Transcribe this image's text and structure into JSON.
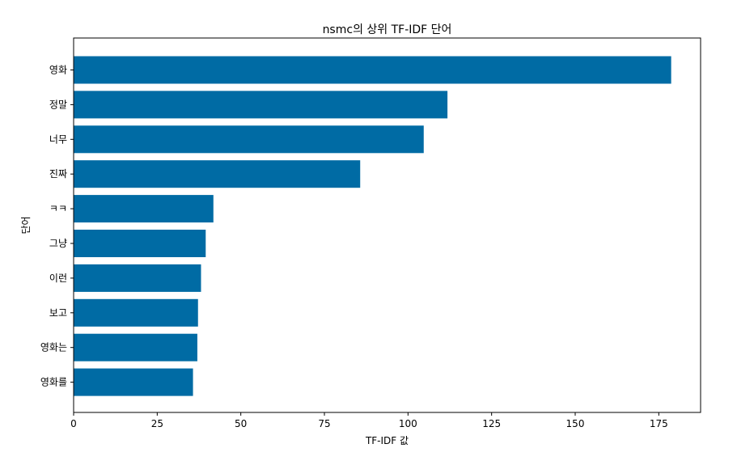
{
  "chart_data": {
    "type": "bar",
    "orientation": "horizontal",
    "title": "nsmc의 상위 TF-IDF 단어",
    "xlabel": "TF-IDF 값",
    "ylabel": "단어",
    "categories": [
      "영화",
      "정말",
      "너무",
      "진짜",
      "ㅋㅋ",
      "그냥",
      "이런",
      "보고",
      "영화는",
      "영화를"
    ],
    "values": [
      178.7,
      111.8,
      104.7,
      85.7,
      41.8,
      39.5,
      38.1,
      37.2,
      37.0,
      35.7
    ],
    "xlim": [
      0,
      187.5
    ],
    "xticks": [
      0,
      25,
      50,
      75,
      100,
      125,
      150,
      175
    ],
    "grid": false,
    "bar_color": "#006ba4"
  }
}
